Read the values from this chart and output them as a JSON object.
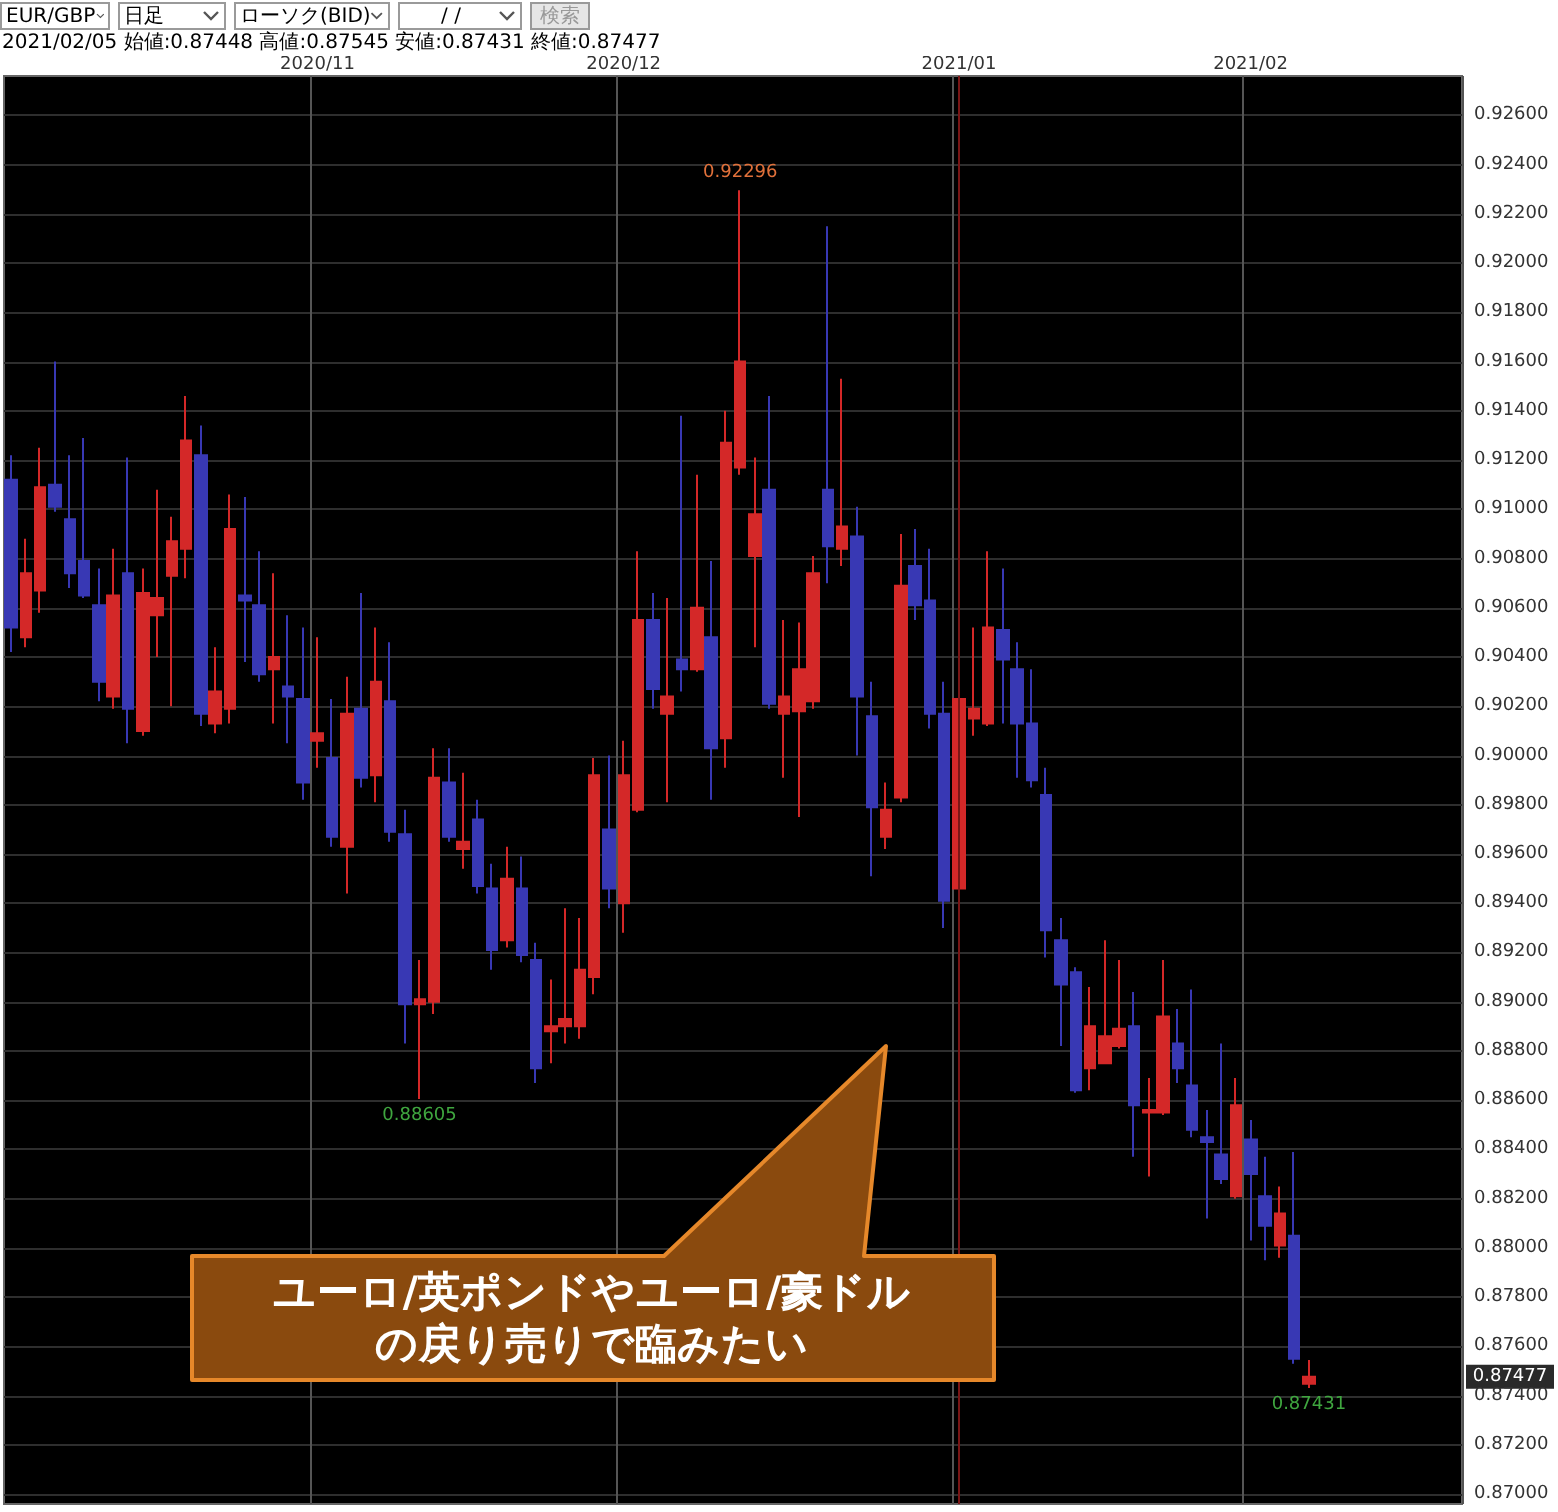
{
  "chart_data": {
    "type": "candlestick",
    "categories": [
      null,
      null,
      null,
      null,
      null,
      null,
      null,
      null,
      null,
      null,
      null,
      null,
      null,
      null,
      null,
      null,
      null,
      null,
      null,
      null,
      null,
      "2020/11",
      null,
      null,
      null,
      null,
      null,
      null,
      null,
      null,
      null,
      null,
      null,
      null,
      null,
      null,
      null,
      null,
      null,
      null,
      null,
      null,
      "2020/12",
      null,
      null,
      null,
      null,
      null,
      null,
      null,
      null,
      null,
      null,
      null,
      null,
      null,
      null,
      null,
      null,
      null,
      null,
      null,
      null,
      null,
      null,
      "2021/01",
      null,
      null,
      null,
      null,
      null,
      null,
      null,
      null,
      null,
      null,
      null,
      null,
      null,
      null,
      null,
      null,
      null,
      null,
      null,
      "2021/02",
      null,
      null,
      null,
      null,
      null,
      null,
      null,
      null,
      null,
      null,
      null,
      null,
      null,
      null
    ],
    "ohlc": [
      [
        0.9112,
        0.9122,
        0.9042,
        0.9052
      ],
      [
        0.9048,
        0.9088,
        0.9044,
        0.9074
      ],
      [
        0.9067,
        0.9125,
        0.9058,
        0.9109
      ],
      [
        0.911,
        0.916,
        0.9099,
        0.9101
      ],
      [
        0.9096,
        0.9122,
        0.9068,
        0.9074
      ],
      [
        0.9079,
        0.9129,
        0.9064,
        0.9065
      ],
      [
        0.9061,
        0.9076,
        0.9022,
        0.903
      ],
      [
        0.9024,
        0.9084,
        0.9019,
        0.9065
      ],
      [
        0.9074,
        0.9121,
        0.9005,
        0.9019
      ],
      [
        0.901,
        0.9076,
        0.9008,
        0.9066
      ],
      [
        0.9057,
        0.9108,
        0.904,
        0.9064
      ],
      [
        0.9073,
        0.9097,
        0.902,
        0.9087
      ],
      [
        0.9084,
        0.9146,
        0.9072,
        0.9128
      ],
      [
        0.9122,
        0.9134,
        0.9012,
        0.9017
      ],
      [
        0.9013,
        0.9044,
        0.9009,
        0.9026
      ],
      [
        0.9019,
        0.9106,
        0.9013,
        0.9092
      ],
      [
        0.9065,
        0.9105,
        0.9038,
        0.9063
      ],
      [
        0.9061,
        0.9083,
        0.903,
        0.9033
      ],
      [
        0.9035,
        0.9074,
        0.9013,
        0.904
      ],
      [
        0.9028,
        0.9057,
        0.9005,
        0.9024
      ],
      [
        0.9023,
        0.9052,
        0.8982,
        0.8989
      ],
      [
        0.9006,
        0.9048,
        0.8995,
        0.9009
      ],
      [
        0.8999,
        0.9023,
        0.8963,
        0.8967
      ],
      [
        0.8963,
        0.9032,
        0.8944,
        0.9017
      ],
      [
        0.9019,
        0.9066,
        0.8987,
        0.8991
      ],
      [
        0.8992,
        0.9052,
        0.8981,
        0.903
      ],
      [
        0.9022,
        0.9046,
        0.8965,
        0.8969
      ],
      [
        0.8968,
        0.8978,
        0.8883,
        0.8899
      ],
      [
        0.8899,
        0.8917,
        0.88605,
        0.8901
      ],
      [
        0.89,
        0.9003,
        0.8895,
        0.8991
      ],
      [
        0.8989,
        0.9003,
        0.8965,
        0.8967
      ],
      [
        0.8962,
        0.8993,
        0.8954,
        0.8965
      ],
      [
        0.8974,
        0.8982,
        0.8944,
        0.8947
      ],
      [
        0.8946,
        0.8956,
        0.8913,
        0.8921
      ],
      [
        0.8925,
        0.8963,
        0.8922,
        0.895
      ],
      [
        0.8946,
        0.8959,
        0.8916,
        0.8919
      ],
      [
        0.8917,
        0.8924,
        0.8867,
        0.8873
      ],
      [
        0.8888,
        0.8909,
        0.8875,
        0.889
      ],
      [
        0.889,
        0.8938,
        0.8883,
        0.8893
      ],
      [
        0.889,
        0.8934,
        0.8885,
        0.8913
      ],
      [
        0.891,
        0.8999,
        0.8903,
        0.8992
      ],
      [
        0.897,
        0.9,
        0.8938,
        0.8946
      ],
      [
        0.894,
        0.9006,
        0.8928,
        0.8992
      ],
      [
        0.8978,
        0.9083,
        0.8977,
        0.9055
      ],
      [
        0.9055,
        0.9066,
        0.9019,
        0.9027
      ],
      [
        0.9017,
        0.9064,
        0.8981,
        0.9024
      ],
      [
        0.9039,
        0.9138,
        0.9026,
        0.9035
      ],
      [
        0.9035,
        0.9114,
        0.9034,
        0.906
      ],
      [
        0.9048,
        0.9079,
        0.8982,
        0.9003
      ],
      [
        0.9007,
        0.914,
        0.8995,
        0.9127
      ],
      [
        0.9117,
        0.92296,
        0.9114,
        0.916
      ],
      [
        0.9081,
        0.9121,
        0.9044,
        0.9098
      ],
      [
        0.9108,
        0.9146,
        0.9019,
        0.9021
      ],
      [
        0.9017,
        0.9055,
        0.8991,
        0.9024
      ],
      [
        0.9018,
        0.9054,
        0.8975,
        0.9035
      ],
      [
        0.9022,
        0.9081,
        0.9019,
        0.9074
      ],
      [
        0.9108,
        0.9215,
        0.907,
        0.9085
      ],
      [
        0.9084,
        0.9153,
        0.9077,
        0.9093
      ],
      [
        0.9089,
        0.9101,
        0.9,
        0.9024
      ],
      [
        0.9016,
        0.903,
        0.8951,
        0.8979
      ],
      [
        0.8967,
        0.8989,
        0.8962,
        0.8978
      ],
      [
        0.8983,
        0.909,
        0.8981,
        0.9069
      ],
      [
        0.9077,
        0.9092,
        0.9055,
        0.9061
      ],
      [
        0.9063,
        0.9084,
        0.9011,
        0.9017
      ],
      [
        0.9017,
        0.903,
        0.893,
        0.8941
      ],
      [
        0.8946,
        0.9048,
        0.894,
        0.9023
      ],
      [
        0.9015,
        0.9052,
        0.9008,
        0.9019
      ],
      [
        0.9013,
        0.9083,
        0.9012,
        0.9052
      ],
      [
        0.9051,
        0.9076,
        0.9013,
        0.9039
      ],
      [
        0.9035,
        0.9046,
        0.8991,
        0.9013
      ],
      [
        0.9013,
        0.9035,
        0.8987,
        0.899
      ],
      [
        0.8984,
        0.8995,
        0.8918,
        0.8929
      ],
      [
        0.8925,
        0.8934,
        0.8882,
        0.8907
      ],
      [
        0.8912,
        0.8914,
        0.8863,
        0.8864
      ],
      [
        0.8873,
        0.8906,
        0.8864,
        0.889
      ],
      [
        0.8875,
        0.8925,
        0.8875,
        0.8886
      ],
      [
        0.8882,
        0.8917,
        0.8881,
        0.8889
      ],
      [
        0.889,
        0.8904,
        0.8837,
        0.8858
      ],
      [
        0.8855,
        0.8869,
        0.8829,
        0.8856
      ],
      [
        0.8855,
        0.8917,
        0.8854,
        0.8894
      ],
      [
        0.8883,
        0.8897,
        0.8867,
        0.8873
      ],
      [
        0.8866,
        0.8905,
        0.8845,
        0.8848
      ],
      [
        0.8845,
        0.8856,
        0.8812,
        0.8843
      ],
      [
        0.8838,
        0.8883,
        0.8826,
        0.8828
      ],
      [
        0.8821,
        0.8869,
        0.882,
        0.8858
      ],
      [
        0.8844,
        0.8852,
        0.8803,
        0.883
      ],
      [
        0.8821,
        0.8837,
        0.8795,
        0.8809
      ],
      [
        0.8801,
        0.8825,
        0.8796,
        0.8814
      ],
      [
        0.8805,
        0.8839,
        0.8753,
        0.8755
      ],
      [
        0.87448,
        0.87545,
        0.87431,
        0.87477
      ],
      null,
      null,
      null,
      null,
      null,
      null,
      null,
      null,
      null,
      null
    ],
    "colors": [
      "#3838b4",
      "#d42828",
      "#d42828",
      "#3838b4",
      "#3838b4",
      "#3838b4",
      "#3838b4",
      "#d42828",
      "#3838b4",
      "#d42828",
      "#d42828",
      "#d42828",
      "#d42828",
      "#3838b4",
      "#d42828",
      "#d42828",
      "#3838b4",
      "#3838b4",
      "#d42828",
      "#3838b4",
      "#3838b4",
      "#d42828",
      "#3838b4",
      "#d42828",
      "#3838b4",
      "#d42828",
      "#3838b4",
      "#3838b4",
      "#d42828",
      "#d42828",
      "#3838b4",
      "#d42828",
      "#3838b4",
      "#3838b4",
      "#d42828",
      "#3838b4",
      "#3838b4",
      "#d42828",
      "#d42828",
      "#d42828",
      "#d42828",
      "#3838b4",
      "#d42828",
      "#d42828",
      "#3838b4",
      "#d42828",
      "#3838b4",
      "#d42828",
      "#3838b4",
      "#d42828",
      "#d42828",
      "#d42828",
      "#3838b4",
      "#d42828",
      "#d42828",
      "#d42828",
      "#3838b4",
      "#d42828",
      "#3838b4",
      "#3838b4",
      "#d42828",
      "#d42828",
      "#3838b4",
      "#3838b4",
      "#3838b4",
      "#d42828",
      "#d42828",
      "#d42828",
      "#3838b4",
      "#3838b4",
      "#3838b4",
      "#3838b4",
      "#3838b4",
      "#3838b4",
      "#d42828",
      "#d42828",
      "#d42828",
      "#3838b4",
      "#d42828",
      "#d42828",
      "#3838b4",
      "#3838b4",
      "#3838b4",
      "#3838b4",
      "#d42828",
      "#3838b4",
      "#3838b4",
      "#d42828",
      "#3838b4",
      "#d42828",
      null,
      null,
      null,
      null,
      null,
      null,
      null,
      null,
      null,
      null
    ],
    "ylim": [
      0.8696,
      0.9276
    ],
    "yticks": [
      {
        "value": 0.87,
        "label": "0.87000"
      },
      {
        "value": 0.872,
        "label": "0.87200"
      },
      {
        "value": 0.874,
        "label": "0.87400"
      },
      {
        "value": 0.876,
        "label": "0.87600"
      },
      {
        "value": 0.878,
        "label": "0.87800"
      },
      {
        "value": 0.88,
        "label": "0.88000"
      },
      {
        "value": 0.882,
        "label": "0.88200"
      },
      {
        "value": 0.884,
        "label": "0.88400"
      },
      {
        "value": 0.886,
        "label": "0.88600"
      },
      {
        "value": 0.888,
        "label": "0.88800"
      },
      {
        "value": 0.89,
        "label": "0.89000"
      },
      {
        "value": 0.892,
        "label": "0.89200"
      },
      {
        "value": 0.894,
        "label": "0.89400"
      },
      {
        "value": 0.896,
        "label": "0.89600"
      },
      {
        "value": 0.898,
        "label": "0.89800"
      },
      {
        "value": 0.9,
        "label": "0.90000"
      },
      {
        "value": 0.902,
        "label": "0.90200"
      },
      {
        "value": 0.904,
        "label": "0.90400"
      },
      {
        "value": 0.906,
        "label": "0.90600"
      },
      {
        "value": 0.908,
        "label": "0.90800"
      },
      {
        "value": 0.91,
        "label": "0.91000"
      },
      {
        "value": 0.912,
        "label": "0.91200"
      },
      {
        "value": 0.914,
        "label": "0.91400"
      },
      {
        "value": 0.916,
        "label": "0.91600"
      },
      {
        "value": 0.918,
        "label": "0.91800"
      },
      {
        "value": 0.92,
        "label": "0.92000"
      },
      {
        "value": 0.922,
        "label": "0.92200"
      },
      {
        "value": 0.924,
        "label": "0.92400"
      },
      {
        "value": 0.926,
        "label": "0.92600"
      }
    ],
    "grid": true,
    "ref_lines": [
      {
        "axis": "x",
        "value": "2021/01",
        "color": "#7a1616"
      }
    ],
    "annotations": [
      "EUR/GBP",
      "日足",
      "ローソク(BID)",
      "/ /",
      "検索",
      "2021/02/05 始値:0.87448 高値:0.87545 安値:0.87431 終値:0.87477",
      "ユーロ/英ポンドやユーロ/豪ドルの戻り売りで臨みたい",
      "0.87477",
      {
        "text": "0.92296",
        "y": 0.92296
      },
      {
        "text": "0.88605",
        "y": 0.88605
      },
      {
        "text": "0.87431",
        "y": 0.87431
      }
    ]
  }
}
